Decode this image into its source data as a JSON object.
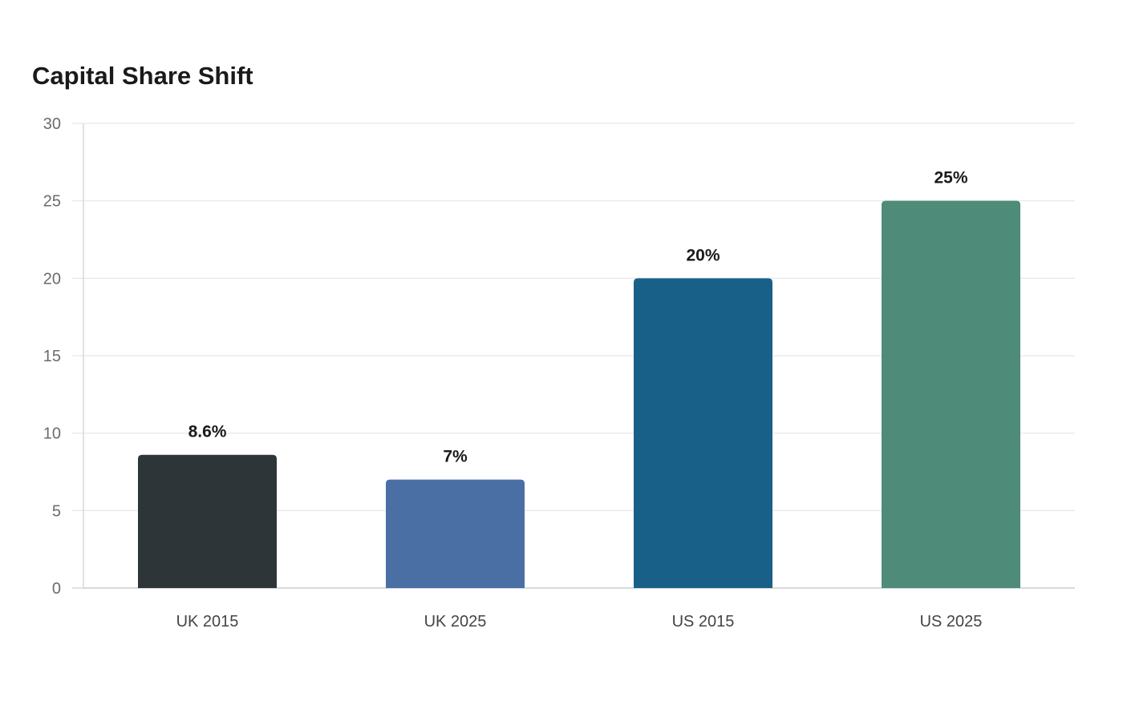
{
  "chart_data": {
    "type": "bar",
    "title": "Capital Share Shift",
    "categories": [
      "UK 2015",
      "UK 2025",
      "US 2015",
      "US 2025"
    ],
    "values": [
      8.6,
      7,
      20,
      25
    ],
    "value_labels": [
      "8.6%",
      "7%",
      "20%",
      "25%"
    ],
    "colors": [
      "#2e3538",
      "#4a6fa5",
      "#196089",
      "#4e8c79"
    ],
    "xlabel": "",
    "ylabel": "",
    "ylim": [
      0,
      30
    ],
    "yticks": [
      0,
      5,
      10,
      15,
      20,
      25,
      30
    ],
    "grid": true,
    "legend": "none"
  }
}
